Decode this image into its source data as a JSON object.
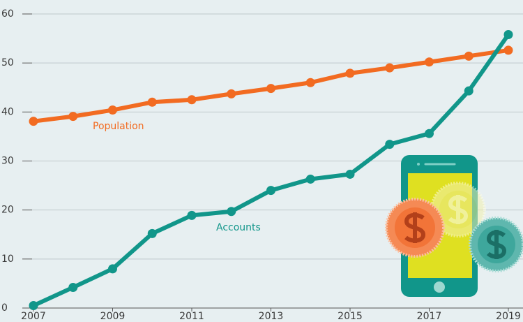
{
  "chart_data": {
    "type": "line",
    "x": [
      2007,
      2008,
      2009,
      2010,
      2011,
      2012,
      2013,
      2014,
      2015,
      2016,
      2017,
      2018,
      2019
    ],
    "series": [
      {
        "name": "Population",
        "color": "#f26b21",
        "values": [
          38.1,
          39.1,
          40.4,
          42.0,
          42.5,
          43.7,
          44.8,
          46.0,
          47.9,
          49.0,
          50.2,
          51.4,
          52.6
        ]
      },
      {
        "name": "Accounts",
        "color": "#11968a",
        "values": [
          0.5,
          4.2,
          8.0,
          15.2,
          18.9,
          19.7,
          24.0,
          26.3,
          27.3,
          33.4,
          35.6,
          44.3,
          55.8
        ]
      }
    ],
    "xlim": [
      2007,
      2019
    ],
    "xticks": [
      2007,
      2009,
      2011,
      2013,
      2015,
      2017,
      2019
    ],
    "ylim": [
      0,
      60
    ],
    "yticks": [
      0,
      10,
      20,
      30,
      40,
      50,
      60
    ],
    "grid": true
  }
}
